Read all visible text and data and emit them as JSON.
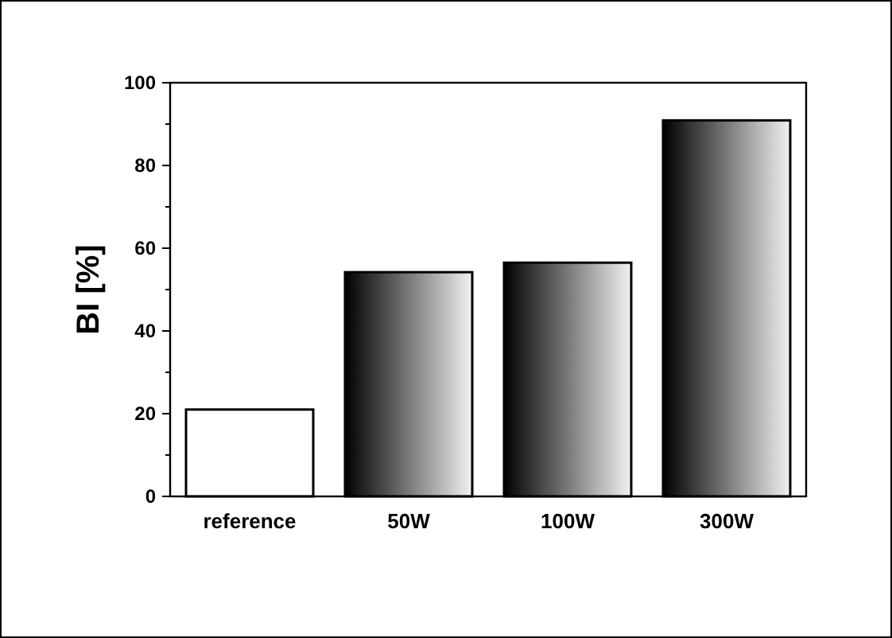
{
  "chart_data": {
    "type": "bar",
    "ylabel": "BI [%]",
    "categories": [
      "reference",
      "50W",
      "100W",
      "300W"
    ],
    "values": [
      21,
      54.2,
      56.5,
      90.9
    ],
    "colors": [
      "#ffffff",
      "#000000",
      "#000000",
      "#000000"
    ],
    "ylim": [
      0,
      100
    ],
    "yticks": [
      0,
      {
        "value": 10,
        "label": null
      },
      20,
      {
        "value": 30,
        "label": null
      },
      40,
      {
        "value": 50,
        "label": null
      },
      60,
      {
        "value": 70,
        "label": null
      },
      80,
      {
        "value": 90,
        "label": null
      },
      100
    ],
    "grid": false
  }
}
